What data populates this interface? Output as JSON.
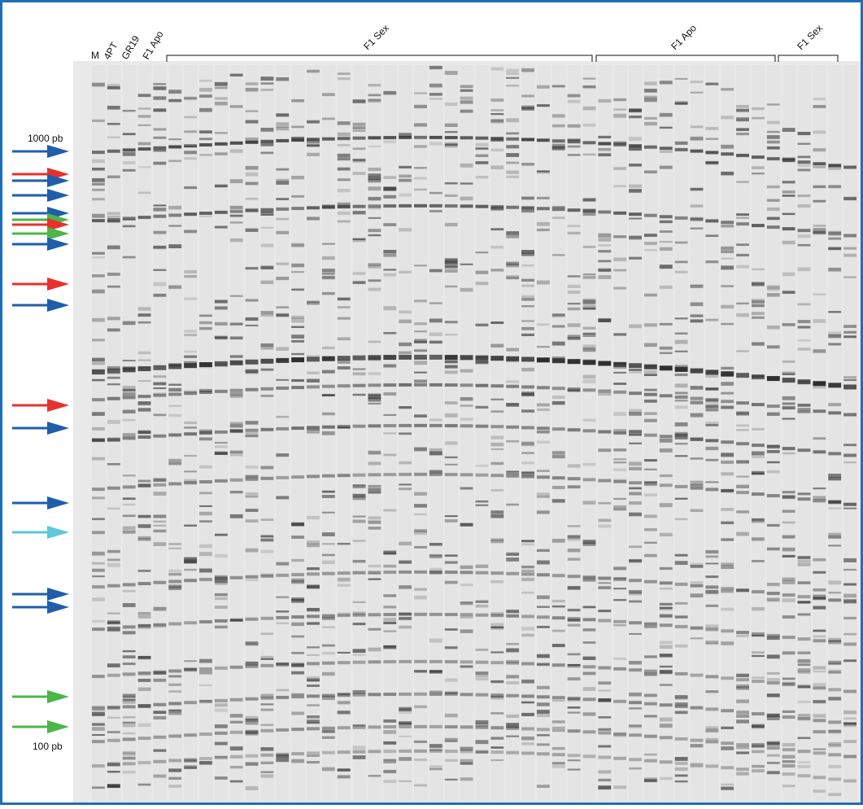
{
  "lane_labels": [
    "M",
    "4PT",
    "GR19",
    "F1 Apo"
  ],
  "groups": [
    {
      "label": "F1 Sex"
    },
    {
      "label": "F1 Apo"
    },
    {
      "label": "F1 Sex"
    }
  ],
  "size_markers": {
    "top": "1000 pb",
    "bottom": "100 pb"
  }
}
